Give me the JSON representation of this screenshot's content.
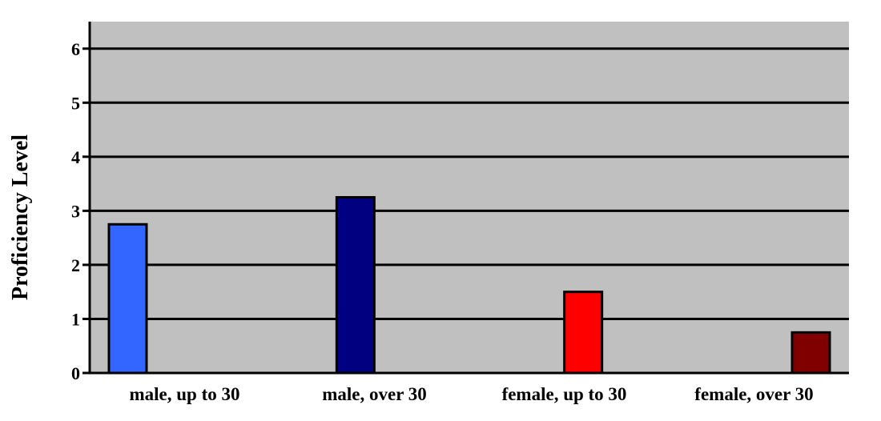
{
  "chart_data": {
    "type": "bar",
    "categories": [
      "male, up to 30",
      "male, over 30",
      "female, up to 30",
      "female, over 30"
    ],
    "series": [
      {
        "values": [
          2.75,
          3.25,
          1.5,
          0.75
        ]
      }
    ],
    "bar_colors": [
      "#3366ff",
      "#000080",
      "#ff0000",
      "#800000"
    ],
    "ylabel": "Proficiency Level",
    "xlabel": "",
    "ylim": [
      0,
      6.5
    ],
    "yticks": [
      0,
      1,
      2,
      3,
      4,
      5,
      6
    ],
    "grid": true,
    "plot_background": "#c0c0c0",
    "legend": "none"
  }
}
